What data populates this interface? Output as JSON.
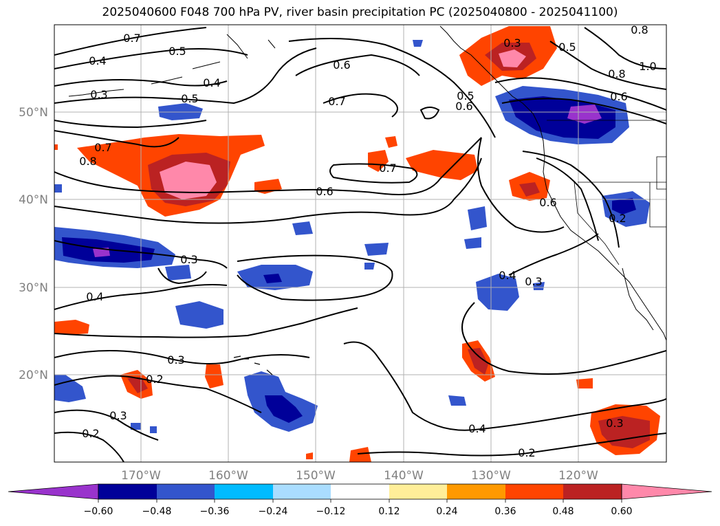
{
  "title": "2025040600 F048 700 hPa PV, river basin precipitation PC (2025040800 - 2025041100)",
  "lat_labels": [
    "50°N",
    "40°N",
    "30°N",
    "20°N"
  ],
  "lon_labels": [
    "170°W",
    "160°W",
    "150°W",
    "140°W",
    "130°W",
    "120°W"
  ],
  "contour_labels": [
    "0.7",
    "0.4",
    "0.3",
    "0.5",
    "0.4",
    "0.5",
    "0.6",
    "0.7",
    "0.3",
    "0.5",
    "0.8",
    "0.7",
    "0.8",
    "0.7",
    "0.6",
    "0.6",
    "0.5",
    "0.8",
    "1.0",
    "0.6",
    "0.6",
    "0.2",
    "0.3",
    "0.4",
    "0.4",
    "0.3",
    "0.3",
    "0.2",
    "0.3",
    "0.2",
    "0.4",
    "0.2",
    "0.3"
  ],
  "colorbar": {
    "tick_labels": [
      "−0.60",
      "−0.48",
      "−0.36",
      "−0.24",
      "−0.12",
      "0.12",
      "0.24",
      "0.36",
      "0.48",
      "0.60"
    ],
    "colors": [
      "#9933cc",
      "#000099",
      "#3355cc",
      "#00bbff",
      "#aaddff",
      "#ffffff",
      "#ffee99",
      "#ff9900",
      "#ff4400",
      "#bb2222",
      "#ff88aa"
    ]
  }
}
